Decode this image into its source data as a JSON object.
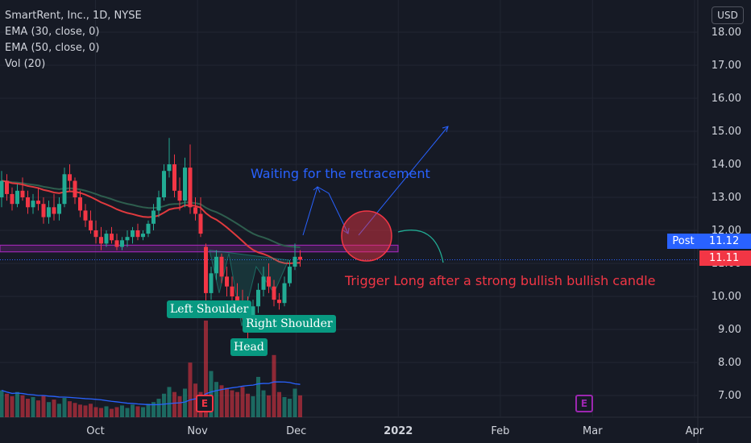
{
  "colors": {
    "background": "#161a25",
    "bull": "#22ab94",
    "bear": "#f23645",
    "ema30": "#e03a3e",
    "ema50": "#2e5e4e",
    "vol_ma": "#2962ff",
    "neckline": "#9c27b0",
    "post": "#2962ff",
    "grid": "#222632",
    "axis_text": "#d1d4dc",
    "note_blue": "#2962ff",
    "note_red": "#f23645"
  },
  "legend": {
    "title": "SmartRent, Inc., 1D, NYSE",
    "ema30": "EMA (30, close, 0)",
    "ema50": "EMA (50, close, 0)",
    "vol": "Vol (20)"
  },
  "currency": "USD",
  "post_label": "Post",
  "post_price": "11.12",
  "last_price": "11.11",
  "annotations": {
    "left_shoulder": "Left Shoulder",
    "head": "Head",
    "right_shoulder": "Right Shoulder",
    "waiting": "Waiting for the retracement",
    "trigger": "Trigger Long after a strong bullish bullish candle",
    "earnings_glyph": "E"
  },
  "chart_data": {
    "type": "candlestick",
    "title": "SmartRent, Inc., 1D, NYSE",
    "ylim": [
      6.4,
      18.6
    ],
    "y_ticks": [
      "18.00",
      "17.00",
      "16.00",
      "15.00",
      "14.00",
      "13.00",
      "12.00",
      "11.00",
      "10.00",
      "9.00",
      "8.00",
      "7.00"
    ],
    "y_tick_values": [
      18,
      17,
      16,
      15,
      14,
      13,
      12,
      11,
      10,
      9,
      8,
      7
    ],
    "x_ticks": [
      "Oct",
      "Nov",
      "Dec",
      "2022",
      "Feb",
      "Mar",
      "Apr"
    ],
    "x_tick_dates": [
      "2021-10-01",
      "2021-11-01",
      "2021-12-01",
      "2022-01-01",
      "2022-02-01",
      "2022-03-01",
      "2022-04-01"
    ],
    "x_range": [
      "2021-09-02",
      "2022-04-02"
    ],
    "candles_ohlc": [
      [
        13.0,
        13.8,
        12.7,
        13.5
      ],
      [
        13.5,
        13.7,
        12.9,
        13.1
      ],
      [
        13.1,
        13.3,
        12.6,
        12.8
      ],
      [
        12.8,
        13.4,
        12.7,
        13.2
      ],
      [
        13.2,
        13.6,
        12.9,
        13.0
      ],
      [
        13.0,
        13.2,
        12.5,
        12.7
      ],
      [
        12.7,
        13.1,
        12.5,
        12.9
      ],
      [
        12.9,
        13.3,
        12.6,
        12.8
      ],
      [
        12.8,
        13.0,
        12.2,
        12.4
      ],
      [
        12.4,
        12.9,
        12.2,
        12.7
      ],
      [
        12.7,
        13.1,
        12.3,
        12.5
      ],
      [
        12.5,
        13.0,
        12.3,
        12.8
      ],
      [
        12.8,
        13.9,
        12.7,
        13.7
      ],
      [
        13.7,
        14.0,
        13.2,
        13.5
      ],
      [
        13.5,
        13.6,
        12.8,
        13.0
      ],
      [
        13.0,
        13.2,
        12.4,
        12.6
      ],
      [
        12.6,
        12.8,
        12.1,
        12.3
      ],
      [
        12.3,
        12.6,
        11.9,
        12.0
      ],
      [
        12.0,
        12.3,
        11.6,
        11.8
      ],
      [
        11.8,
        12.1,
        11.4,
        11.6
      ],
      [
        11.6,
        12.0,
        11.5,
        11.9
      ],
      [
        11.9,
        12.1,
        11.6,
        11.7
      ],
      [
        11.7,
        11.9,
        11.4,
        11.5
      ],
      [
        11.5,
        11.8,
        11.4,
        11.7
      ],
      [
        11.7,
        12.0,
        11.5,
        11.8
      ],
      [
        11.8,
        12.1,
        11.6,
        12.0
      ],
      [
        12.0,
        12.2,
        11.7,
        11.8
      ],
      [
        11.8,
        12.0,
        11.7,
        11.9
      ],
      [
        11.9,
        12.3,
        11.8,
        12.2
      ],
      [
        12.2,
        12.8,
        12.0,
        12.6
      ],
      [
        12.6,
        13.2,
        12.4,
        13.0
      ],
      [
        13.0,
        14.0,
        12.9,
        13.8
      ],
      [
        13.8,
        14.8,
        13.6,
        14.0
      ],
      [
        14.0,
        14.3,
        13.0,
        13.2
      ],
      [
        13.2,
        13.6,
        12.6,
        12.9
      ],
      [
        12.9,
        14.2,
        12.7,
        13.9
      ],
      [
        13.9,
        14.6,
        12.5,
        12.7
      ],
      [
        12.7,
        13.0,
        12.3,
        12.5
      ],
      [
        12.5,
        13.0,
        11.8,
        11.9
      ],
      [
        11.5,
        11.6,
        9.8,
        10.1
      ],
      [
        10.1,
        10.9,
        9.9,
        10.7
      ],
      [
        10.7,
        11.4,
        10.5,
        11.2
      ],
      [
        11.2,
        11.3,
        10.4,
        10.6
      ],
      [
        10.6,
        10.9,
        10.0,
        10.3
      ],
      [
        10.3,
        10.6,
        9.8,
        10.0
      ],
      [
        10.0,
        10.4,
        9.6,
        9.8
      ],
      [
        9.8,
        10.2,
        9.3,
        9.6
      ],
      [
        9.6,
        10.0,
        8.7,
        9.4
      ],
      [
        9.4,
        9.9,
        9.2,
        9.7
      ],
      [
        9.7,
        10.4,
        9.5,
        10.2
      ],
      [
        10.2,
        10.9,
        10.0,
        10.6
      ],
      [
        10.6,
        11.0,
        10.1,
        10.3
      ],
      [
        10.3,
        10.5,
        9.7,
        9.9
      ],
      [
        9.9,
        10.1,
        9.6,
        9.8
      ],
      [
        9.8,
        10.6,
        9.7,
        10.4
      ],
      [
        10.4,
        11.1,
        10.3,
        10.9
      ],
      [
        10.9,
        11.6,
        10.8,
        11.2
      ],
      [
        11.2,
        11.4,
        10.9,
        11.11
      ]
    ],
    "volume": [
      3.2,
      2.8,
      2.5,
      3.0,
      2.6,
      2.2,
      2.4,
      2.0,
      2.6,
      1.8,
      2.1,
      1.6,
      2.3,
      1.9,
      1.7,
      1.5,
      1.4,
      1.6,
      1.2,
      1.1,
      1.3,
      1.0,
      1.2,
      1.4,
      1.1,
      1.5,
      1.3,
      1.2,
      1.6,
      1.8,
      2.2,
      2.8,
      3.6,
      3.0,
      2.5,
      3.4,
      6.5,
      4.0,
      3.0,
      11.5,
      5.5,
      4.2,
      3.8,
      3.5,
      3.2,
      3.0,
      3.6,
      2.8,
      2.5,
      4.8,
      3.2,
      2.6,
      7.4,
      3.0,
      2.4,
      2.2,
      3.4,
      2.6
    ]
  }
}
